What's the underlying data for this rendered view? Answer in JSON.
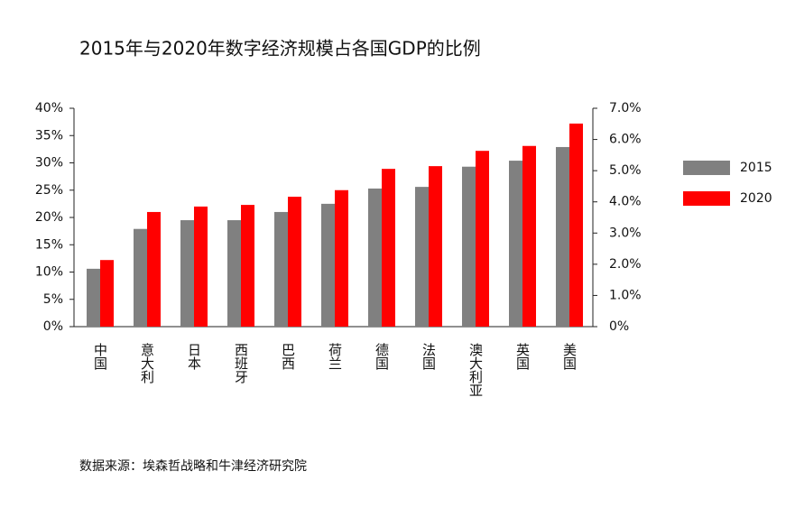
{
  "chart_data": {
    "type": "bar",
    "title": "2015年与2020年数字经济规模占各国GDP的比例",
    "source": "数据来源：埃森哲战略和牛津经济研究院",
    "categories": [
      "中国",
      "意大利",
      "日本",
      "西班牙",
      "巴西",
      "荷兰",
      "德国",
      "法国",
      "澳大利亚",
      "英国",
      "美国"
    ],
    "series": [
      {
        "name": "2015",
        "color": "#808080",
        "values": [
          10.6,
          17.9,
          19.5,
          19.5,
          21.0,
          22.5,
          25.3,
          25.6,
          29.3,
          30.4,
          32.9
        ]
      },
      {
        "name": "2020",
        "color": "#ff0000",
        "values": [
          12.2,
          21.0,
          22.0,
          22.3,
          23.8,
          25.0,
          28.9,
          29.4,
          32.2,
          33.1,
          37.2
        ]
      }
    ],
    "ylim": [
      0,
      40
    ],
    "yticks": [
      {
        "value": 0,
        "label": "0%"
      },
      {
        "value": 5,
        "label": "5%"
      },
      {
        "value": 10,
        "label": "10%"
      },
      {
        "value": 15,
        "label": "15%"
      },
      {
        "value": 20,
        "label": "20%"
      },
      {
        "value": 25,
        "label": "25%"
      },
      {
        "value": 30,
        "label": "30%"
      },
      {
        "value": 35,
        "label": "35%"
      },
      {
        "value": 40,
        "label": "40%"
      }
    ],
    "y2lim": [
      0,
      7
    ],
    "y2ticks": [
      {
        "value": 0,
        "label": "0%"
      },
      {
        "value": 1,
        "label": "1.0%"
      },
      {
        "value": 2,
        "label": "2.0%"
      },
      {
        "value": 3,
        "label": "3.0%"
      },
      {
        "value": 4,
        "label": "4.0%"
      },
      {
        "value": 5,
        "label": "5.0%"
      },
      {
        "value": 6,
        "label": "6.0%"
      },
      {
        "value": 7,
        "label": "7.0%"
      }
    ],
    "legend": "right"
  }
}
